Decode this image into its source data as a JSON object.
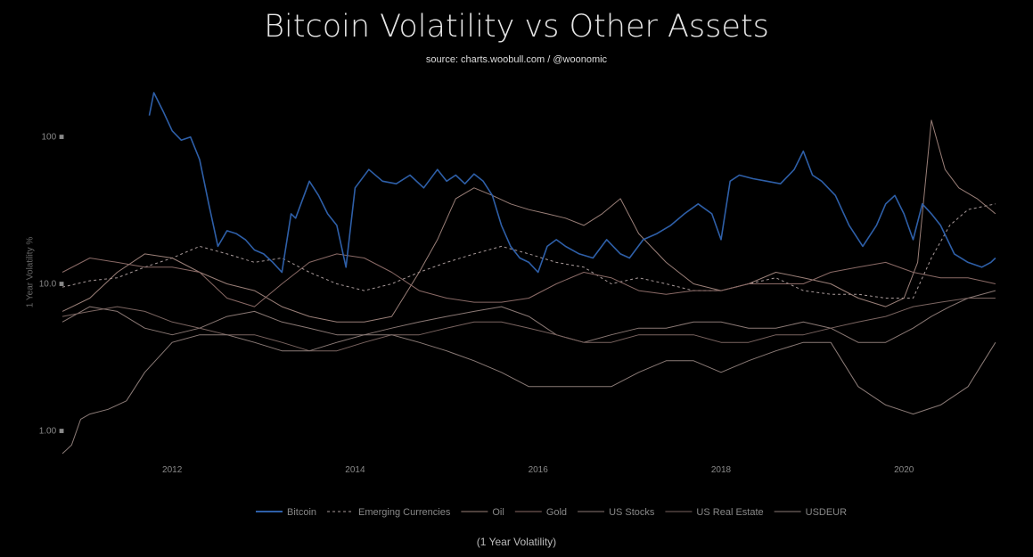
{
  "chart_data": {
    "type": "line",
    "title": "Bitcoin Volatility vs Other Assets",
    "subtitle": "source: charts.woobull.com / @woonomic",
    "ylabel": "1 Year Volatility %",
    "caption": "(1 Year Volatility)",
    "yscale": "log",
    "ylim": [
      0.6,
      160
    ],
    "xlim": [
      2010.8,
      2021.05
    ],
    "y_ticks": [
      {
        "value": 1,
        "label": "1.00 ■"
      },
      {
        "value": 10,
        "label": "10.0 ■"
      },
      {
        "value": 100,
        "label": "100 ■"
      }
    ],
    "x_ticks": [
      {
        "value": 2012,
        "label": "2012"
      },
      {
        "value": 2014,
        "label": "2014"
      },
      {
        "value": 2016,
        "label": "2016"
      },
      {
        "value": 2018,
        "label": "2018"
      },
      {
        "value": 2020,
        "label": "2020"
      }
    ],
    "legend_position": "bottom",
    "series": [
      {
        "name": "Bitcoin",
        "color": "#2e5fa8",
        "dash": "",
        "width": 1.6,
        "x": [
          2011.75,
          2011.8,
          2011.9,
          2012.0,
          2012.1,
          2012.2,
          2012.3,
          2012.4,
          2012.5,
          2012.6,
          2012.7,
          2012.8,
          2012.9,
          2013.0,
          2013.1,
          2013.2,
          2013.3,
          2013.35,
          2013.5,
          2013.6,
          2013.7,
          2013.8,
          2013.9,
          2014.0,
          2014.15,
          2014.3,
          2014.45,
          2014.6,
          2014.75,
          2014.9,
          2015.0,
          2015.1,
          2015.2,
          2015.3,
          2015.4,
          2015.5,
          2015.6,
          2015.7,
          2015.8,
          2015.9,
          2016.0,
          2016.1,
          2016.2,
          2016.3,
          2016.45,
          2016.6,
          2016.75,
          2016.9,
          2017.0,
          2017.15,
          2017.3,
          2017.45,
          2017.6,
          2017.75,
          2017.9,
          2018.0,
          2018.1,
          2018.2,
          2018.35,
          2018.5,
          2018.65,
          2018.8,
          2018.9,
          2019.0,
          2019.1,
          2019.25,
          2019.4,
          2019.55,
          2019.7,
          2019.8,
          2019.9,
          2020.0,
          2020.1,
          2020.2,
          2020.3,
          2020.4,
          2020.55,
          2020.7,
          2020.85,
          2020.95,
          2021.0
        ],
        "y": [
          140,
          200,
          150,
          110,
          95,
          100,
          70,
          35,
          18,
          23,
          22,
          20,
          17,
          16,
          14,
          12,
          30,
          28,
          50,
          40,
          30,
          25,
          13,
          45,
          60,
          50,
          48,
          55,
          45,
          60,
          50,
          55,
          48,
          56,
          50,
          40,
          25,
          18,
          15,
          14,
          12,
          18,
          20,
          18,
          16,
          15,
          20,
          16,
          15,
          20,
          22,
          25,
          30,
          35,
          30,
          20,
          50,
          55,
          52,
          50,
          48,
          60,
          80,
          55,
          50,
          40,
          25,
          18,
          25,
          35,
          40,
          30,
          20,
          35,
          30,
          25,
          16,
          14,
          13,
          14,
          15
        ]
      },
      {
        "name": "Emerging Currencies",
        "color": "#a89a9a",
        "dash": "3,3",
        "width": 1,
        "x": [
          2010.8,
          2011.1,
          2011.4,
          2011.7,
          2012.0,
          2012.3,
          2012.6,
          2012.9,
          2013.2,
          2013.5,
          2013.8,
          2014.1,
          2014.4,
          2014.7,
          2015.0,
          2015.3,
          2015.6,
          2015.9,
          2016.2,
          2016.5,
          2016.8,
          2017.1,
          2017.4,
          2017.7,
          2018.0,
          2018.3,
          2018.6,
          2018.9,
          2019.2,
          2019.5,
          2019.8,
          2020.1,
          2020.3,
          2020.5,
          2020.7,
          2021.0
        ],
        "y": [
          9.5,
          10.5,
          11,
          13,
          15,
          18,
          16,
          14,
          15,
          12,
          10,
          9,
          10,
          12,
          14,
          16,
          18,
          16,
          14,
          13,
          10,
          11,
          10,
          9,
          9,
          10,
          11,
          9,
          8.5,
          8.5,
          8,
          8,
          15,
          25,
          32,
          35
        ]
      },
      {
        "name": "Oil",
        "color": "#9a7f78",
        "dash": "",
        "width": 1,
        "x": [
          2010.8,
          2011.1,
          2011.4,
          2011.7,
          2012.0,
          2012.3,
          2012.6,
          2012.9,
          2013.2,
          2013.5,
          2013.8,
          2014.1,
          2014.4,
          2014.7,
          2014.9,
          2015.1,
          2015.3,
          2015.5,
          2015.7,
          2015.9,
          2016.1,
          2016.3,
          2016.5,
          2016.7,
          2016.9,
          2017.1,
          2017.4,
          2017.7,
          2018.0,
          2018.3,
          2018.6,
          2018.9,
          2019.2,
          2019.5,
          2019.8,
          2020.0,
          2020.15,
          2020.3,
          2020.45,
          2020.6,
          2020.8,
          2021.0
        ],
        "y": [
          6.5,
          8,
          12,
          16,
          15,
          12,
          10,
          9,
          7,
          6,
          5.5,
          5.5,
          6,
          12,
          20,
          38,
          45,
          40,
          35,
          32,
          30,
          28,
          25,
          30,
          38,
          22,
          14,
          10,
          9,
          10,
          12,
          11,
          10,
          8,
          7,
          8,
          14,
          130,
          60,
          45,
          38,
          30
        ]
      },
      {
        "name": "Gold",
        "color": "#8a6a66",
        "dash": "",
        "width": 1,
        "x": [
          2010.8,
          2011.1,
          2011.4,
          2011.7,
          2012.0,
          2012.3,
          2012.6,
          2012.9,
          2013.2,
          2013.5,
          2013.8,
          2014.1,
          2014.4,
          2014.7,
          2015.0,
          2015.3,
          2015.6,
          2015.9,
          2016.2,
          2016.5,
          2016.8,
          2017.1,
          2017.4,
          2017.7,
          2018.0,
          2018.3,
          2018.6,
          2018.9,
          2019.2,
          2019.5,
          2019.8,
          2020.1,
          2020.4,
          2020.7,
          2021.0
        ],
        "y": [
          12,
          15,
          14,
          13,
          13,
          12,
          8,
          7,
          10,
          14,
          16,
          15,
          12,
          9,
          8,
          7.5,
          7.5,
          8,
          10,
          12,
          11,
          9,
          8.5,
          9,
          9,
          10,
          10,
          10,
          12,
          13,
          14,
          12,
          11,
          11,
          10
        ]
      },
      {
        "name": "US Stocks",
        "color": "#8a7874",
        "dash": "",
        "width": 1,
        "x": [
          2010.8,
          2011.1,
          2011.4,
          2011.7,
          2012.0,
          2012.3,
          2012.6,
          2012.9,
          2013.2,
          2013.5,
          2013.8,
          2014.1,
          2014.4,
          2014.7,
          2015.0,
          2015.3,
          2015.6,
          2015.9,
          2016.2,
          2016.5,
          2016.8,
          2017.1,
          2017.4,
          2017.7,
          2018.0,
          2018.3,
          2018.6,
          2018.9,
          2019.2,
          2019.5,
          2019.8,
          2020.1,
          2020.3,
          2020.5,
          2020.7,
          2021.0
        ],
        "y": [
          5.5,
          7,
          6.5,
          5,
          4.5,
          5,
          6,
          6.5,
          5.5,
          5,
          4.5,
          4.5,
          5,
          5.5,
          6,
          6.5,
          7,
          6,
          4.5,
          4,
          4.5,
          5,
          5,
          5.5,
          5.5,
          5,
          5,
          5.5,
          5,
          4,
          4,
          5,
          6,
          7,
          8,
          9
        ]
      },
      {
        "name": "US Real Estate",
        "color": "#7a6460",
        "dash": "",
        "width": 1,
        "x": [
          2010.8,
          2011.1,
          2011.4,
          2011.7,
          2012.0,
          2012.3,
          2012.6,
          2012.9,
          2013.2,
          2013.5,
          2013.8,
          2014.1,
          2014.4,
          2014.7,
          2015.0,
          2015.3,
          2015.6,
          2015.9,
          2016.2,
          2016.5,
          2016.8,
          2017.1,
          2017.4,
          2017.7,
          2018.0,
          2018.3,
          2018.6,
          2018.9,
          2019.2,
          2019.5,
          2019.8,
          2020.1,
          2020.4,
          2020.7,
          2021.0
        ],
        "y": [
          6,
          6.5,
          7,
          6.5,
          5.5,
          5,
          4.5,
          4.5,
          4,
          3.5,
          3.5,
          4,
          4.5,
          4.5,
          5,
          5.5,
          5.5,
          5,
          4.5,
          4,
          4,
          4.5,
          4.5,
          4.5,
          4,
          4,
          4.5,
          4.5,
          5,
          5.5,
          6,
          7,
          7.5,
          8,
          8
        ]
      },
      {
        "name": "USDEUR",
        "color": "#8a7a76",
        "dash": "",
        "width": 1,
        "x": [
          2010.8,
          2010.9,
          2011.0,
          2011.1,
          2011.3,
          2011.5,
          2011.7,
          2012.0,
          2012.3,
          2012.6,
          2012.9,
          2013.2,
          2013.5,
          2013.8,
          2014.1,
          2014.4,
          2014.7,
          2015.0,
          2015.3,
          2015.6,
          2015.9,
          2016.2,
          2016.5,
          2016.8,
          2017.1,
          2017.4,
          2017.7,
          2018.0,
          2018.3,
          2018.6,
          2018.9,
          2019.2,
          2019.5,
          2019.8,
          2020.1,
          2020.4,
          2020.7,
          2021.0
        ],
        "y": [
          0.7,
          0.8,
          1.2,
          1.3,
          1.4,
          1.6,
          2.5,
          4.0,
          4.5,
          4.5,
          4.0,
          3.5,
          3.5,
          4.0,
          4.5,
          4.5,
          4.0,
          3.5,
          3.0,
          2.5,
          2.0,
          2.0,
          2.0,
          2.0,
          2.5,
          3.0,
          3.0,
          2.5,
          3.0,
          3.5,
          4.0,
          4.0,
          2.0,
          1.5,
          1.3,
          1.5,
          2.0,
          4.0
        ]
      }
    ]
  }
}
